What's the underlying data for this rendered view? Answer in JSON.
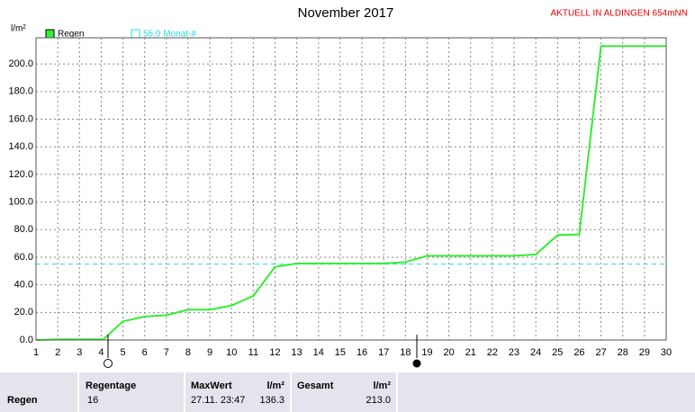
{
  "chart_data": {
    "type": "line",
    "title": "November 2017",
    "note": "AKTUELL IN ALDINGEN 654mNN",
    "y_label": "l/m²",
    "x": [
      1,
      2,
      3,
      4.1,
      5,
      6,
      7,
      8,
      9,
      10,
      11,
      12,
      13,
      14,
      15,
      16,
      17,
      18,
      19,
      20,
      21,
      22,
      23,
      24,
      25,
      26,
      27,
      30
    ],
    "series": [
      {
        "name": "Regen",
        "color": "#33ee33",
        "values": [
          0,
          0.5,
          0.5,
          0.5,
          13.5,
          17,
          18,
          22,
          22,
          25,
          32,
          53,
          55.5,
          55.5,
          55.5,
          55.5,
          55.5,
          56.5,
          61,
          61,
          61,
          61,
          61,
          62,
          76,
          76.5,
          213,
          213
        ]
      }
    ],
    "reference": {
      "value": 55,
      "label": "55.0 Monat-#",
      "color": "#22dddd"
    },
    "xlim": [
      1,
      30
    ],
    "xticks": [
      1,
      2,
      3,
      4,
      5,
      6,
      7,
      8,
      9,
      10,
      11,
      12,
      13,
      14,
      15,
      16,
      17,
      18,
      19,
      20,
      21,
      22,
      23,
      24,
      25,
      26,
      27,
      28,
      29,
      30
    ],
    "ylim": [
      0,
      219
    ],
    "yticks": [
      {
        "value": 0,
        "label": "0.0"
      },
      {
        "value": 20,
        "label": "20.0"
      },
      {
        "value": 40,
        "label": "40.0"
      },
      {
        "value": 60,
        "label": "60.0"
      },
      {
        "value": 80,
        "label": "80.0"
      },
      {
        "value": 100,
        "label": "100.0"
      },
      {
        "value": 120,
        "label": "120.0"
      },
      {
        "value": 140,
        "label": "140.0"
      },
      {
        "value": 160,
        "label": "160.0"
      },
      {
        "value": 180,
        "label": "180.0"
      },
      {
        "value": 200,
        "label": "200.0"
      }
    ],
    "grid": true
  },
  "table": {
    "row_label": "Regen",
    "columns": [
      {
        "header": "Regentage",
        "unit": null,
        "value": "16",
        "detail": null
      },
      {
        "header": "MaxWert",
        "unit": "l/m²",
        "value": "136.3",
        "detail": "27.11.  23:47"
      },
      {
        "header": "Gesamt",
        "unit": "l/m²",
        "value": "213.0",
        "detail": null
      }
    ]
  }
}
